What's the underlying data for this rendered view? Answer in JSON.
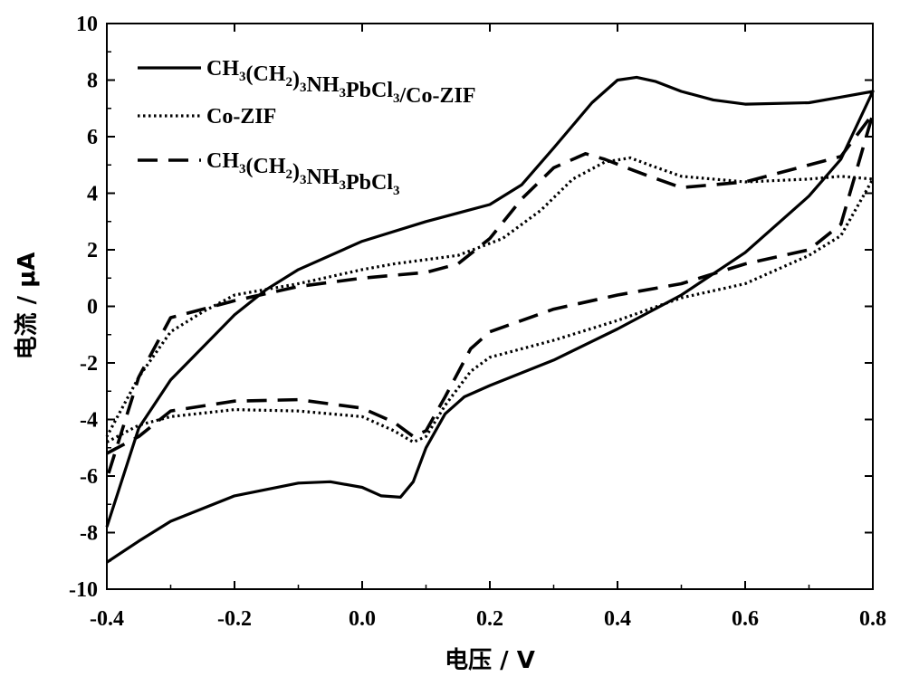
{
  "chart_data": {
    "type": "line",
    "xlabel": "电压 / V",
    "ylabel": "电流 / μA",
    "xlim": [
      -0.4,
      0.8
    ],
    "ylim": [
      -10,
      10
    ],
    "x_ticks": [
      -0.4,
      -0.2,
      0.0,
      0.2,
      0.4,
      0.6,
      0.8
    ],
    "x_tick_labels": [
      "-0.4",
      "-0.2",
      "0.0",
      "0.2",
      "0.4",
      "0.6",
      "0.8"
    ],
    "y_ticks": [
      -10,
      -8,
      -6,
      -4,
      -2,
      0,
      2,
      4,
      6,
      8,
      10
    ],
    "y_tick_labels": [
      "-10",
      "-8",
      "-6",
      "-4",
      "-2",
      "0",
      "2",
      "4",
      "6",
      "8",
      "10"
    ],
    "grid": false,
    "legend_position": "top-left",
    "series": [
      {
        "name": "CH3(CH2)3NH3PbCl3/Co-ZIF",
        "legend_main": [
          "CH",
          "(CH",
          ")",
          "NH",
          "PbCl",
          "/Co-ZIF"
        ],
        "legend_subs": [
          "3",
          "2",
          "3",
          "3",
          "3",
          ""
        ],
        "style": "solid",
        "points": [
          [
            -0.4,
            -9.05
          ],
          [
            -0.35,
            -8.3
          ],
          [
            -0.3,
            -7.6
          ],
          [
            -0.2,
            -6.7
          ],
          [
            -0.1,
            -6.25
          ],
          [
            -0.05,
            -6.2
          ],
          [
            0.0,
            -6.4
          ],
          [
            0.03,
            -6.7
          ],
          [
            0.06,
            -6.75
          ],
          [
            0.08,
            -6.2
          ],
          [
            0.1,
            -5.0
          ],
          [
            0.13,
            -3.8
          ],
          [
            0.16,
            -3.2
          ],
          [
            0.2,
            -2.8
          ],
          [
            0.3,
            -1.9
          ],
          [
            0.4,
            -0.8
          ],
          [
            0.5,
            0.4
          ],
          [
            0.6,
            1.9
          ],
          [
            0.7,
            3.9
          ],
          [
            0.75,
            5.2
          ],
          [
            0.8,
            7.6
          ],
          [
            0.75,
            7.4
          ],
          [
            0.7,
            7.2
          ],
          [
            0.6,
            7.15
          ],
          [
            0.55,
            7.3
          ],
          [
            0.5,
            7.6
          ],
          [
            0.46,
            7.95
          ],
          [
            0.43,
            8.1
          ],
          [
            0.4,
            8.0
          ],
          [
            0.36,
            7.2
          ],
          [
            0.3,
            5.6
          ],
          [
            0.25,
            4.3
          ],
          [
            0.2,
            3.6
          ],
          [
            0.1,
            3.0
          ],
          [
            0.0,
            2.3
          ],
          [
            -0.1,
            1.3
          ],
          [
            -0.15,
            0.6
          ],
          [
            -0.2,
            -0.3
          ],
          [
            -0.3,
            -2.6
          ],
          [
            -0.35,
            -4.3
          ],
          [
            -0.4,
            -7.8
          ]
        ]
      },
      {
        "name": "Co-ZIF",
        "legend_main": [
          "Co-ZIF"
        ],
        "legend_subs": [
          ""
        ],
        "style": "dotted",
        "points": [
          [
            -0.4,
            -4.8
          ],
          [
            -0.35,
            -4.2
          ],
          [
            -0.3,
            -3.9
          ],
          [
            -0.2,
            -3.65
          ],
          [
            -0.1,
            -3.7
          ],
          [
            0.0,
            -3.9
          ],
          [
            0.05,
            -4.4
          ],
          [
            0.08,
            -4.8
          ],
          [
            0.1,
            -4.6
          ],
          [
            0.13,
            -3.5
          ],
          [
            0.17,
            -2.3
          ],
          [
            0.2,
            -1.8
          ],
          [
            0.3,
            -1.2
          ],
          [
            0.4,
            -0.5
          ],
          [
            0.5,
            0.3
          ],
          [
            0.6,
            0.8
          ],
          [
            0.7,
            1.8
          ],
          [
            0.75,
            2.5
          ],
          [
            0.8,
            4.5
          ],
          [
            0.75,
            4.6
          ],
          [
            0.7,
            4.5
          ],
          [
            0.6,
            4.4
          ],
          [
            0.5,
            4.6
          ],
          [
            0.45,
            5.0
          ],
          [
            0.42,
            5.25
          ],
          [
            0.38,
            5.1
          ],
          [
            0.33,
            4.5
          ],
          [
            0.28,
            3.4
          ],
          [
            0.22,
            2.4
          ],
          [
            0.15,
            1.8
          ],
          [
            0.05,
            1.5
          ],
          [
            0.0,
            1.3
          ],
          [
            -0.1,
            0.8
          ],
          [
            -0.2,
            0.4
          ],
          [
            -0.25,
            -0.2
          ],
          [
            -0.3,
            -0.9
          ],
          [
            -0.35,
            -2.5
          ],
          [
            -0.4,
            -4.6
          ]
        ]
      },
      {
        "name": "CH3(CH2)3NH3PbCl3",
        "legend_main": [
          "CH",
          "(CH",
          ")",
          "NH",
          "PbCl"
        ],
        "legend_subs": [
          "3",
          "2",
          "3",
          "3",
          "3"
        ],
        "style": "dashed",
        "points": [
          [
            -0.4,
            -5.2
          ],
          [
            -0.35,
            -4.6
          ],
          [
            -0.3,
            -3.7
          ],
          [
            -0.2,
            -3.35
          ],
          [
            -0.1,
            -3.3
          ],
          [
            0.0,
            -3.6
          ],
          [
            0.05,
            -4.1
          ],
          [
            0.08,
            -4.6
          ],
          [
            0.1,
            -4.4
          ],
          [
            0.13,
            -3.2
          ],
          [
            0.17,
            -1.5
          ],
          [
            0.2,
            -0.9
          ],
          [
            0.3,
            -0.1
          ],
          [
            0.4,
            0.4
          ],
          [
            0.5,
            0.8
          ],
          [
            0.6,
            1.5
          ],
          [
            0.7,
            2.0
          ],
          [
            0.75,
            2.9
          ],
          [
            0.8,
            6.8
          ],
          [
            0.75,
            5.3
          ],
          [
            0.7,
            5.0
          ],
          [
            0.6,
            4.4
          ],
          [
            0.5,
            4.2
          ],
          [
            0.45,
            4.6
          ],
          [
            0.42,
            4.85
          ],
          [
            0.38,
            5.2
          ],
          [
            0.35,
            5.4
          ],
          [
            0.3,
            4.9
          ],
          [
            0.25,
            3.8
          ],
          [
            0.2,
            2.4
          ],
          [
            0.15,
            1.5
          ],
          [
            0.1,
            1.2
          ],
          [
            0.0,
            1.0
          ],
          [
            -0.1,
            0.7
          ],
          [
            -0.2,
            0.2
          ],
          [
            -0.3,
            -0.4
          ],
          [
            -0.35,
            -2.5
          ],
          [
            -0.4,
            -6.1
          ]
        ]
      }
    ]
  }
}
